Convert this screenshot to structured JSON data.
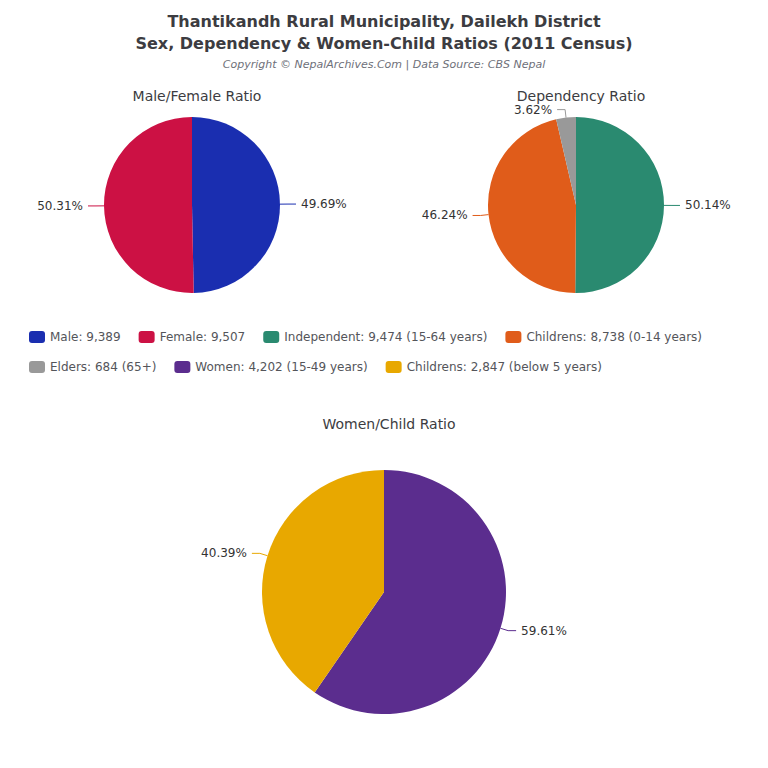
{
  "title": "Thantikandh Rural Municipality, Dailekh District",
  "subtitle": "Sex, Dependency & Women-Child Ratios (2011 Census)",
  "annotations": [
    "Copyright © NepalArchives.Com | Data Source: CBS Nepal"
  ],
  "legend": "center",
  "chart_data": [
    {
      "type": "pie",
      "title": "Male/Female Ratio",
      "categories": [
        "Male: 9,389",
        "Female: 9,507"
      ],
      "values": [
        49.69,
        50.31
      ],
      "value_labels": [
        "49.69%",
        "50.31%"
      ],
      "colors": [
        "#1a2eb0",
        "#cc1144"
      ],
      "data_labels": true
    },
    {
      "type": "pie",
      "title": "Dependency Ratio",
      "categories": [
        "Independent: 9,474 (15-64 years)",
        "Childrens: 8,738 (0-14 years)",
        "Elders: 684 (65+)"
      ],
      "values": [
        50.14,
        46.24,
        3.62
      ],
      "value_labels": [
        "50.14%",
        "46.24%",
        "3.62%"
      ],
      "colors": [
        "#2a8a70",
        "#e05c1a",
        "#999999"
      ],
      "data_labels": true
    },
    {
      "type": "pie",
      "title": "Women/Child Ratio",
      "categories": [
        "Women: 4,202 (15-49 years)",
        "Childrens: 2,847 (below 5 years)"
      ],
      "values": [
        59.61,
        40.39
      ],
      "value_labels": [
        "59.61%",
        "40.39%"
      ],
      "colors": [
        "#5b2d8e",
        "#e8a800"
      ],
      "data_labels": true
    }
  ]
}
